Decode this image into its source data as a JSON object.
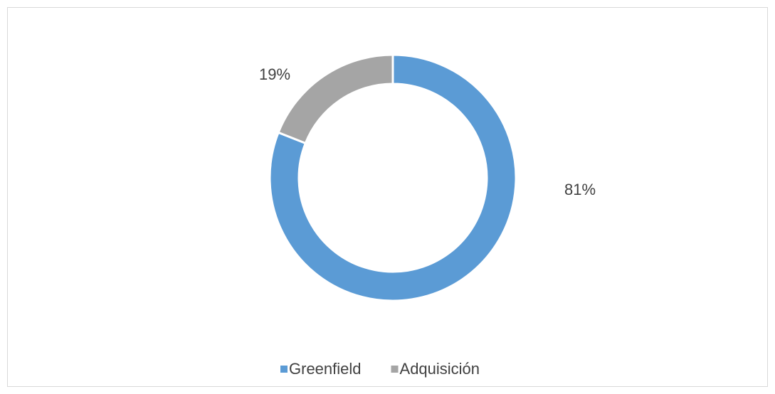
{
  "chart_data": {
    "type": "donut",
    "categories": [
      "Greenfield",
      "Adquisición"
    ],
    "values": [
      81,
      19
    ],
    "value_labels": [
      "81%",
      "19%"
    ],
    "colors": [
      "#5b9bd5",
      "#a5a5a5"
    ],
    "legend": "bottom"
  }
}
